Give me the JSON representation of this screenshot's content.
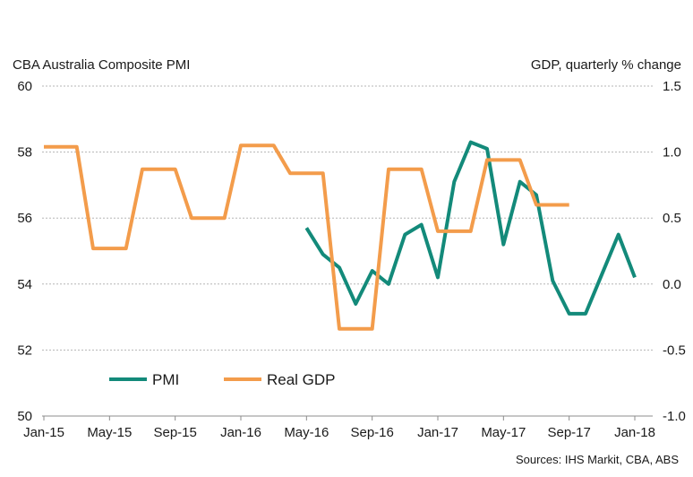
{
  "chart_data": {
    "type": "line",
    "left_axis_title": "CBA Australia Composite  PMI",
    "right_axis_title": "GDP, quarterly % change",
    "source_note": "Sources: IHS Markit, CBA, ABS",
    "x_tick_labels": [
      "Jan-15",
      "May-15",
      "Sep-15",
      "Jan-16",
      "May-16",
      "Sep-16",
      "Jan-17",
      "May-17",
      "Sep-17",
      "Jan-18"
    ],
    "y_left": {
      "min": 50,
      "max": 60,
      "ticks": [
        "50",
        "52",
        "54",
        "56",
        "58",
        "60"
      ]
    },
    "y_right": {
      "min": -1.0,
      "max": 1.5,
      "ticks": [
        "-1.0",
        "-0.5",
        "0.0",
        "0.5",
        "1.0",
        "1.5"
      ]
    },
    "grid": "horizontal dashed",
    "legend_position": "bottom-left",
    "series": [
      {
        "name": "PMI",
        "axis": "left",
        "color": "#138a7a",
        "points": [
          {
            "x": "2016-05",
            "y": 55.7
          },
          {
            "x": "2016-06",
            "y": 54.9
          },
          {
            "x": "2016-07",
            "y": 54.5
          },
          {
            "x": "2016-08",
            "y": 53.4
          },
          {
            "x": "2016-09",
            "y": 54.4
          },
          {
            "x": "2016-10",
            "y": 54.0
          },
          {
            "x": "2016-11",
            "y": 55.5
          },
          {
            "x": "2016-12",
            "y": 55.8
          },
          {
            "x": "2017-01",
            "y": 54.2
          },
          {
            "x": "2017-02",
            "y": 57.1
          },
          {
            "x": "2017-03",
            "y": 58.3
          },
          {
            "x": "2017-04",
            "y": 58.1
          },
          {
            "x": "2017-05",
            "y": 55.2
          },
          {
            "x": "2017-06",
            "y": 57.1
          },
          {
            "x": "2017-07",
            "y": 56.7
          },
          {
            "x": "2017-08",
            "y": 54.1
          },
          {
            "x": "2017-09",
            "y": 53.1
          },
          {
            "x": "2017-10",
            "y": 53.1
          },
          {
            "x": "2017-11",
            "y": 54.3
          },
          {
            "x": "2017-12",
            "y": 55.5
          },
          {
            "x": "2018-01",
            "y": 54.2
          }
        ]
      },
      {
        "name": "Real GDP",
        "axis": "right",
        "color": "#f39c4b",
        "points": [
          {
            "x": "2015-01",
            "y": 1.04
          },
          {
            "x": "2015-03",
            "y": 1.04
          },
          {
            "x": "2015-04",
            "y": 0.27
          },
          {
            "x": "2015-06",
            "y": 0.27
          },
          {
            "x": "2015-07",
            "y": 0.87
          },
          {
            "x": "2015-09",
            "y": 0.87
          },
          {
            "x": "2015-10",
            "y": 0.5
          },
          {
            "x": "2015-12",
            "y": 0.5
          },
          {
            "x": "2016-01",
            "y": 1.05
          },
          {
            "x": "2016-03",
            "y": 1.05
          },
          {
            "x": "2016-04",
            "y": 0.84
          },
          {
            "x": "2016-06",
            "y": 0.84
          },
          {
            "x": "2016-07",
            "y": -0.34
          },
          {
            "x": "2016-09",
            "y": -0.34
          },
          {
            "x": "2016-10",
            "y": 0.87
          },
          {
            "x": "2016-12",
            "y": 0.87
          },
          {
            "x": "2017-01",
            "y": 0.4
          },
          {
            "x": "2017-03",
            "y": 0.4
          },
          {
            "x": "2017-04",
            "y": 0.94
          },
          {
            "x": "2017-06",
            "y": 0.94
          },
          {
            "x": "2017-07",
            "y": 0.6
          },
          {
            "x": "2017-09",
            "y": 0.6
          }
        ]
      }
    ]
  }
}
